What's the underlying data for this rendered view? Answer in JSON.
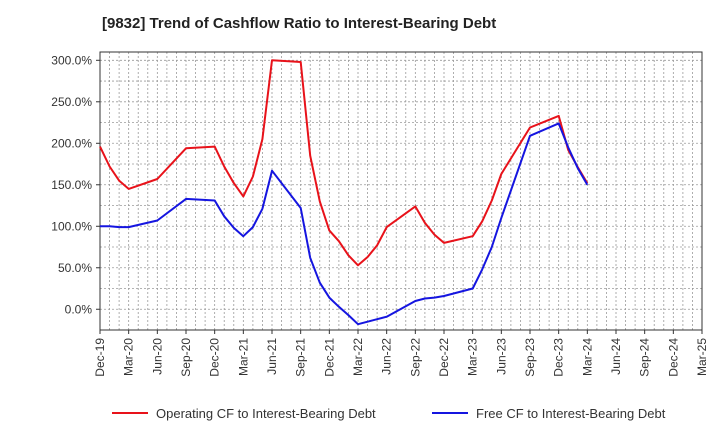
{
  "chart_data": {
    "type": "line",
    "title": "[9832]  Trend of Cashflow Ratio to Interest-Bearing Debt",
    "xlabel": "",
    "ylabel": "",
    "y_ticks": [
      "300.0%",
      "250.0%",
      "200.0%",
      "150.0%",
      "100.0%",
      "50.0%",
      "0.0%"
    ],
    "x_ticks": [
      "Dec-19",
      "Mar-20",
      "Jun-20",
      "Sep-20",
      "Dec-20",
      "Mar-21",
      "Jun-21",
      "Sep-21",
      "Dec-21",
      "Mar-22",
      "Jun-22",
      "Sep-22",
      "Dec-22",
      "Mar-23",
      "Jun-23",
      "Sep-23",
      "Dec-23",
      "Mar-24",
      "Jun-24",
      "Sep-24",
      "Dec-24",
      "Mar-25"
    ],
    "ylim": [
      -25,
      310
    ],
    "grid": true,
    "legend_position": "bottom",
    "x": [
      "Dec-19",
      "Jan-20",
      "Feb-20",
      "Mar-20",
      "Jun-20",
      "Sep-20",
      "Dec-20",
      "Jan-21",
      "Feb-21",
      "Mar-21",
      "Apr-21",
      "May-21",
      "Jun-21",
      "Sep-21",
      "Oct-21",
      "Nov-21",
      "Dec-21",
      "Jan-22",
      "Feb-22",
      "Mar-22",
      "Apr-22",
      "May-22",
      "Jun-22",
      "Sep-22",
      "Oct-22",
      "Nov-22",
      "Dec-22",
      "Mar-23",
      "Apr-23",
      "May-23",
      "Jun-23",
      "Sep-23",
      "Dec-23",
      "Jan-24",
      "Feb-24",
      "Mar-24"
    ],
    "series": [
      {
        "name": "Operating CF to Interest-Bearing Debt",
        "color": "#e8121a",
        "values": [
          196,
          172,
          155,
          145,
          157,
          194,
          196,
          172,
          152,
          136,
          160,
          205,
          300,
          298,
          185,
          130,
          95,
          82,
          65,
          53,
          63,
          77,
          99,
          124,
          104,
          90,
          80,
          88,
          106,
          131,
          163,
          219,
          233,
          192,
          171,
          152
        ]
      },
      {
        "name": "Free CF to Interest-Bearing Debt",
        "color": "#1515e0",
        "values": [
          100,
          100,
          99,
          99,
          107,
          133,
          131,
          112,
          98,
          88,
          99,
          121,
          167,
          122,
          62,
          32,
          14,
          3,
          -7,
          -18,
          -15,
          -12,
          -9,
          10,
          13,
          14,
          16,
          25,
          48,
          75,
          110,
          209,
          224,
          195,
          170,
          150
        ]
      }
    ]
  }
}
